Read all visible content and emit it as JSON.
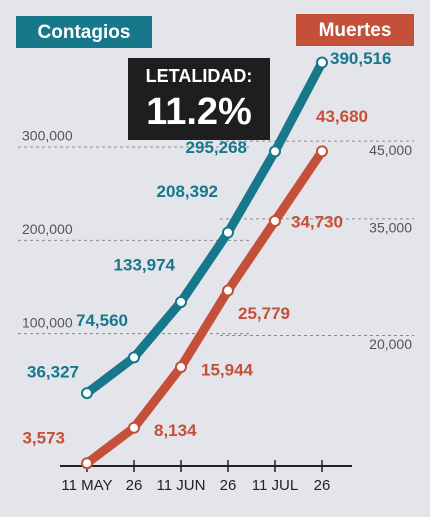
{
  "chart_data": {
    "type": "line",
    "categories": [
      "11 MAY",
      "26",
      "11 JUN",
      "26",
      "11 JUL",
      "26"
    ],
    "series": [
      {
        "name": "Contagios",
        "color": "#16788a",
        "values": [
          36327,
          74560,
          133974,
          208392,
          295268,
          390516
        ],
        "value_labels": [
          "36,327",
          "74,560",
          "133,974",
          "208,392",
          "295,268",
          "390,516"
        ]
      },
      {
        "name": "Muertes",
        "color": "#c4503a",
        "axis": "y2",
        "values": [
          3573,
          8134,
          15944,
          25779,
          34730,
          43680
        ],
        "value_labels": [
          "3,573",
          "8,134",
          "15,944",
          "25,779",
          "34,730",
          "43,680"
        ]
      }
    ],
    "ylim": [
      0,
      420000
    ],
    "yticks": [
      {
        "value": 100000,
        "label": "100,000"
      },
      {
        "value": 200000,
        "label": "200,000"
      },
      {
        "value": 300000,
        "label": "300,000"
      }
    ],
    "y2lim": [
      0,
      58000
    ],
    "y2ticks": [
      {
        "value": 20000,
        "label": "20,000"
      },
      {
        "value": 35000,
        "label": "35,000"
      },
      {
        "value": 45000,
        "label": "45,000"
      }
    ],
    "grid": true,
    "annotations": [
      "LETALIDAD:",
      "11.2%"
    ]
  }
}
